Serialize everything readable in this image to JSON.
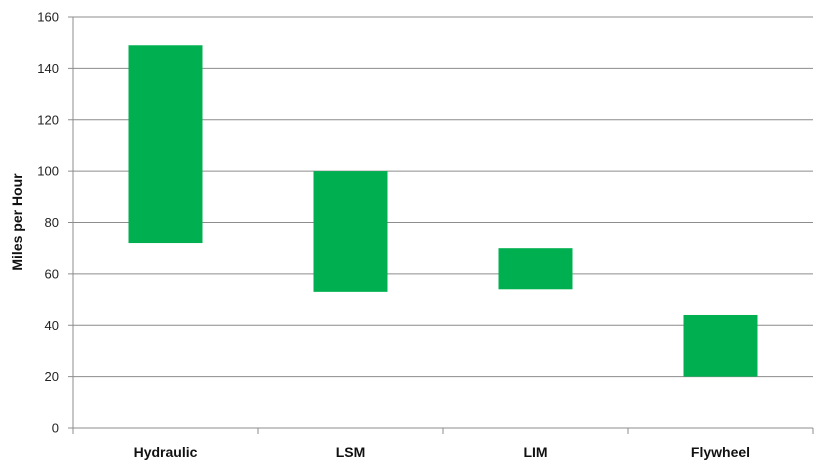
{
  "chart_data": {
    "type": "bar",
    "subtype": "floating-range",
    "title": "",
    "xlabel": "",
    "ylabel": "Miles per Hour",
    "ylim": [
      0,
      160
    ],
    "yticks": [
      0,
      20,
      40,
      60,
      80,
      100,
      120,
      140,
      160
    ],
    "grid": true,
    "legend": "none",
    "categories": [
      "Hydraulic",
      "LSM",
      "LIM",
      "Flywheel"
    ],
    "series": [
      {
        "low": [
          72,
          53,
          54,
          20
        ],
        "high": [
          149,
          100,
          70,
          44
        ],
        "color": "#00b050"
      }
    ]
  }
}
